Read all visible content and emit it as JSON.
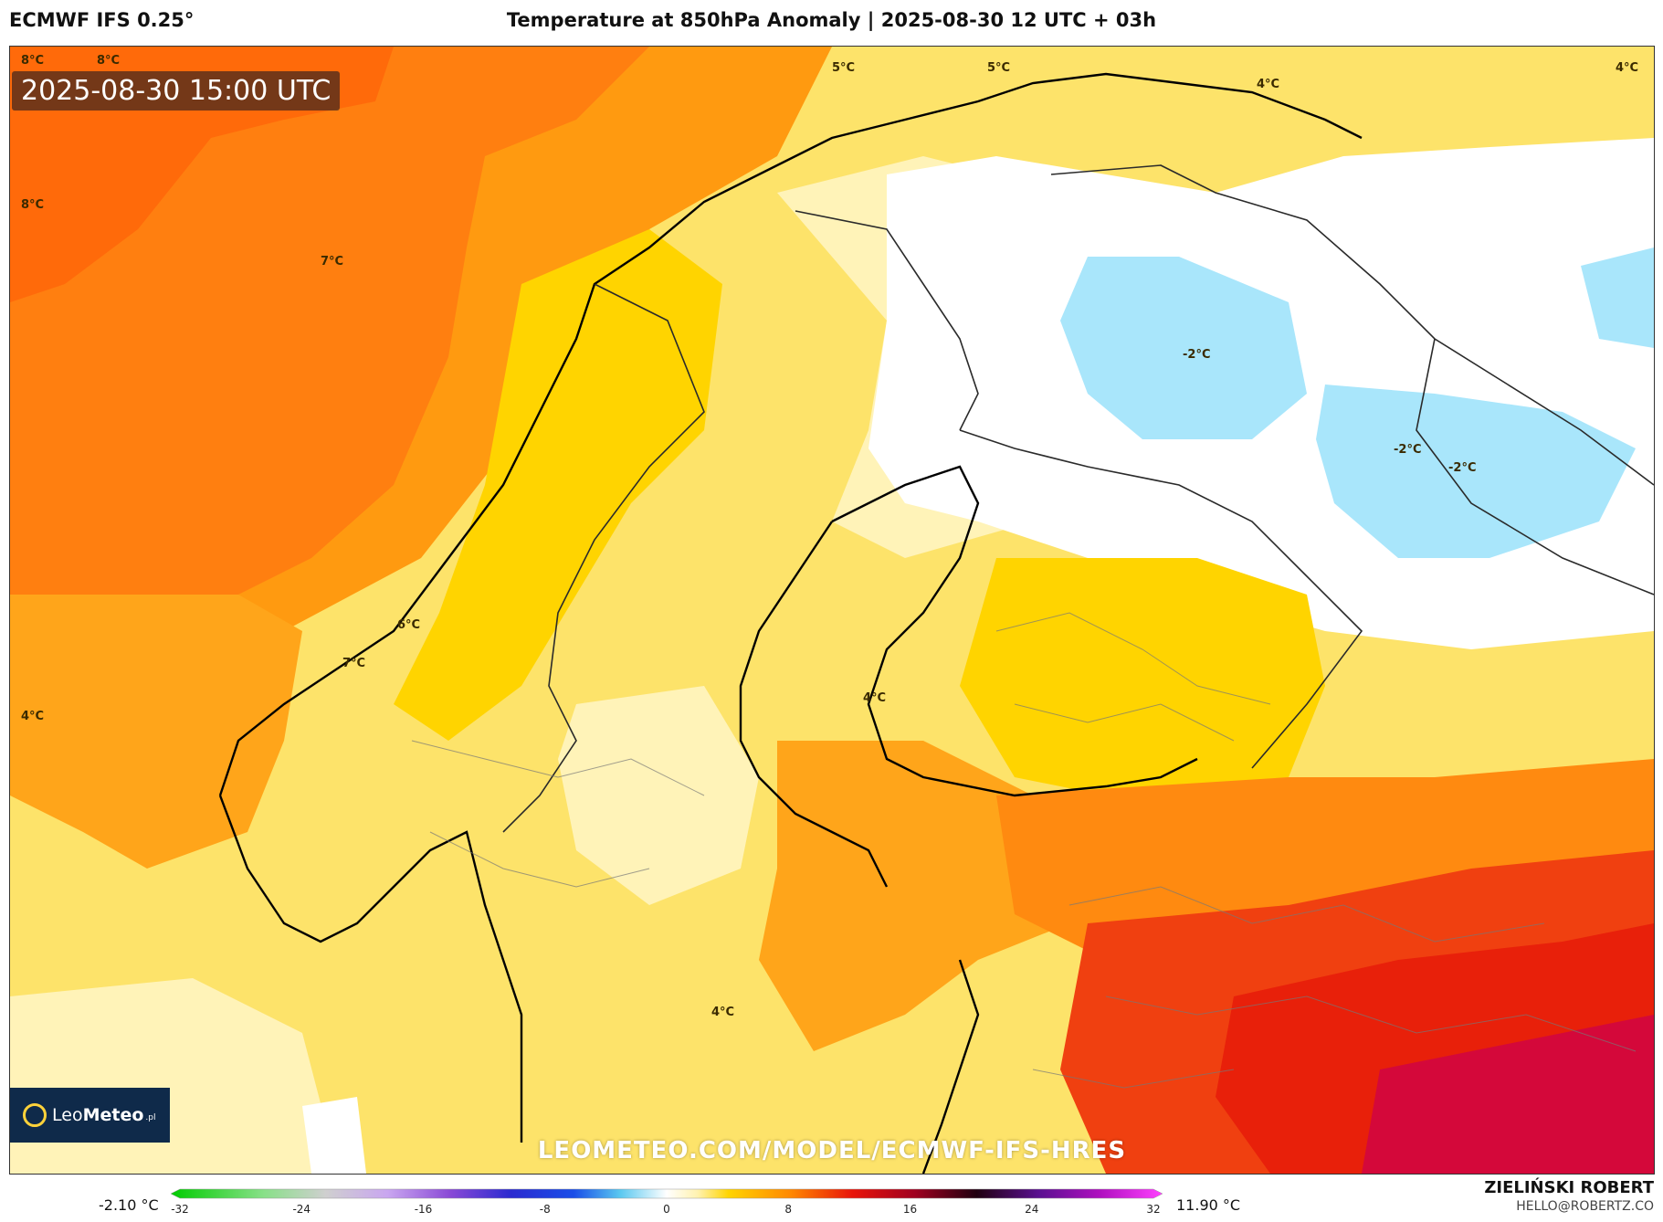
{
  "header": {
    "model": "ECMWF IFS 0.25°",
    "title": "Temperature at 850hPa Anomaly | 2025-08-30 12 UTC + 03h"
  },
  "map": {
    "valid_time": "2025-08-30 15:00 UTC",
    "contour_labels": [
      "8°C",
      "8°C",
      "5°C",
      "5°C",
      "4°C",
      "4°C",
      "8°C",
      "7°C",
      "-2°C",
      "-2°C",
      "-2°C",
      "6°C",
      "7°C",
      "4°C",
      "4°C",
      "4°C"
    ],
    "watermark": "LEOMETEO.COM/MODEL/ECMWF-IFS-HRES",
    "logo": {
      "brand_light": "Leo",
      "brand_bold": "Meteo",
      "suffix": ".pl"
    }
  },
  "colorbar": {
    "min_label": "-2.10 °C",
    "max_label": "11.90 °C",
    "ticks": [
      "-32",
      "-24",
      "-16",
      "-8",
      "0",
      "8",
      "16",
      "24",
      "32"
    ],
    "tick_values": [
      -32,
      -24,
      -16,
      -8,
      0,
      8,
      16,
      24,
      32
    ],
    "range": [
      -32,
      32
    ],
    "stops": [
      {
        "v": -32,
        "c": "#00cc00"
      },
      {
        "v": -26,
        "c": "#88e088"
      },
      {
        "v": -22,
        "c": "#cfcfcf"
      },
      {
        "v": -18,
        "c": "#c9a6f0"
      },
      {
        "v": -14,
        "c": "#8a4ad6"
      },
      {
        "v": -10,
        "c": "#2a2ad0"
      },
      {
        "v": -6,
        "c": "#1a4ee8"
      },
      {
        "v": -3,
        "c": "#5ac8f0"
      },
      {
        "v": 0,
        "c": "#ffffff"
      },
      {
        "v": 2,
        "c": "#fff2b0"
      },
      {
        "v": 4,
        "c": "#ffd400"
      },
      {
        "v": 8,
        "c": "#ff8800"
      },
      {
        "v": 12,
        "c": "#e8140a"
      },
      {
        "v": 16,
        "c": "#a00020"
      },
      {
        "v": 20,
        "c": "#200010"
      },
      {
        "v": 24,
        "c": "#5a1090"
      },
      {
        "v": 28,
        "c": "#b010c0"
      },
      {
        "v": 32,
        "c": "#ff40ff"
      }
    ]
  },
  "footer": {
    "author": "ZIELIŃSKI ROBERT",
    "email": "HELLO@ROBERTZ.CO"
  },
  "colors": {
    "ocean_warm": "#ff7f10",
    "ocean_very_warm": "#ff6a0a",
    "land_warm": "#ffd400",
    "land_mild": "#fde36a",
    "land_pale": "#fff3b8",
    "neutral": "#ffffff",
    "cold": "#a9e6fb",
    "hot": "#e8200a",
    "very_hot": "#d4083a",
    "logo_bg": "#0f2a4a"
  }
}
